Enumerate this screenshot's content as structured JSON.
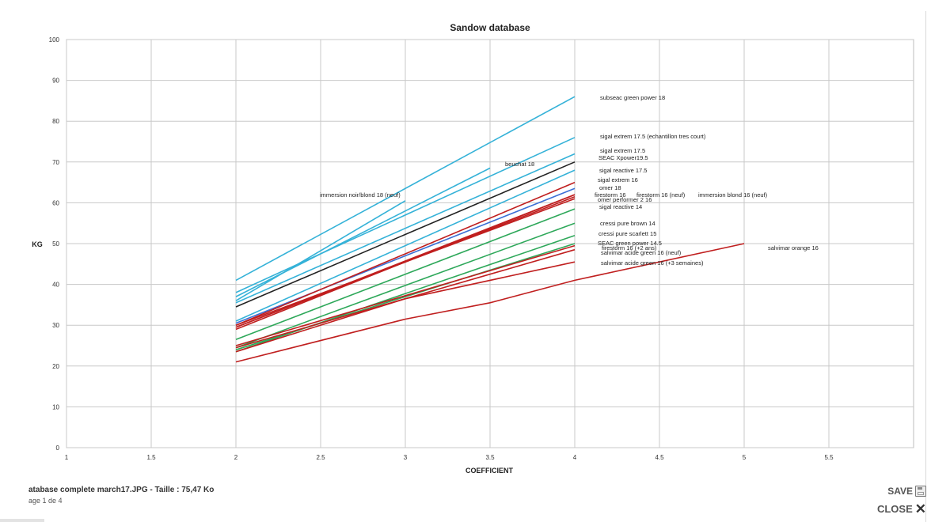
{
  "viewer": {
    "file_title": "atabase complete march17.JPG - Taille : 75,47 Ko",
    "page_info": "age 1 de 4",
    "save_label": "SAVE",
    "close_label": "CLOSE",
    "icons": {
      "save": "floppy-disk-icon",
      "close": "close-x-icon"
    }
  },
  "chart_data": {
    "type": "line",
    "title": "Sandow database",
    "xlabel": "COEFFICIENT",
    "ylabel": "KG",
    "xlim": [
      1,
      6
    ],
    "ylim": [
      0,
      100
    ],
    "xticks": [
      "1",
      "1.5",
      "2",
      "2.5",
      "3",
      "3.5",
      "4",
      "4.5",
      "5",
      "5.5"
    ],
    "yticks": [
      "0",
      "10",
      "20",
      "30",
      "40",
      "50",
      "60",
      "70",
      "80",
      "90",
      "100"
    ],
    "grid": true,
    "legend": "labels at line ends",
    "colors": {
      "blue": "#35b2d8",
      "black": "#222222",
      "darkblue": "#3b6fd6",
      "red": "#c01f1f",
      "green": "#2ea85a"
    },
    "series": [
      {
        "name": "subseac green power 18",
        "color": "blue",
        "x": [
          2,
          4
        ],
        "y": [
          41,
          86
        ]
      },
      {
        "name": "sigal extrem 17.5 (echantillon tres court)",
        "color": "blue",
        "x": [
          2,
          4
        ],
        "y": [
          38,
          76
        ]
      },
      {
        "name": "beuchat 18",
        "color": "blue",
        "x": [
          2,
          3.5
        ],
        "y": [
          37,
          68.5
        ]
      },
      {
        "name": "immersion noir/blond 18 (neuf)",
        "color": "blue",
        "x": [
          2,
          3
        ],
        "y": [
          36,
          60.5
        ]
      },
      {
        "name": "sigal extrem 17.5",
        "color": "blue",
        "x": [
          2,
          4
        ],
        "y": [
          35.5,
          72
        ]
      },
      {
        "name": "SEAC Xpower19.5",
        "color": "black",
        "x": [
          2,
          4
        ],
        "y": [
          34.5,
          70
        ]
      },
      {
        "name": "sigal reactive 17.5",
        "color": "blue",
        "x": [
          2,
          4
        ],
        "y": [
          31,
          68
        ]
      },
      {
        "name": "sigal extrem 16",
        "color": "darkblue",
        "x": [
          2,
          4
        ],
        "y": [
          30.5,
          63.5
        ]
      },
      {
        "name": "omer 18",
        "color": "red",
        "x": [
          2,
          4
        ],
        "y": [
          30,
          65
        ]
      },
      {
        "name": "firestorm 16",
        "color": "red",
        "x": [
          2,
          4
        ],
        "y": [
          29.5,
          61.5
        ]
      },
      {
        "name": "firestorm 16 (neuf)",
        "color": "red",
        "x": [
          2,
          4
        ],
        "y": [
          29.5,
          62
        ]
      },
      {
        "name": "immersion blond 16 (neuf)",
        "color": "red",
        "x": [
          2,
          4
        ],
        "y": [
          29,
          62
        ]
      },
      {
        "name": "omer performer 2 16",
        "color": "red",
        "x": [
          2,
          4
        ],
        "y": [
          30,
          61
        ]
      },
      {
        "name": "sigal reactive 14",
        "color": "green",
        "x": [
          2,
          4
        ],
        "y": [
          26.5,
          58.5
        ]
      },
      {
        "name": "cressi pure brown 14",
        "color": "green",
        "x": [
          2,
          4
        ],
        "y": [
          24.5,
          55
        ]
      },
      {
        "name": "cressi pure scarlett 15",
        "color": "green",
        "x": [
          2,
          4
        ],
        "y": [
          23.5,
          52
        ]
      },
      {
        "name": "SEAC green power 14.5",
        "color": "green",
        "x": [
          2,
          4
        ],
        "y": [
          24,
          50
        ]
      },
      {
        "name": "firestorm 16 (+2 ans)",
        "color": "red",
        "x": [
          2,
          4
        ],
        "y": [
          25,
          49.5
        ]
      },
      {
        "name": "salvimar acide green 16 (neuf)",
        "color": "red",
        "x": [
          2,
          4
        ],
        "y": [
          24.5,
          48.5
        ]
      },
      {
        "name": "salvimar acide green 16 (+3 semaines)",
        "color": "red",
        "x": [
          2,
          3,
          4
        ],
        "y": [
          23.5,
          36.5,
          45.5
        ]
      },
      {
        "name": "salvimar orange 16",
        "color": "red",
        "x": [
          2,
          3,
          3.5,
          4,
          5
        ],
        "y": [
          21,
          31.5,
          35.5,
          41,
          50
        ]
      }
    ]
  }
}
